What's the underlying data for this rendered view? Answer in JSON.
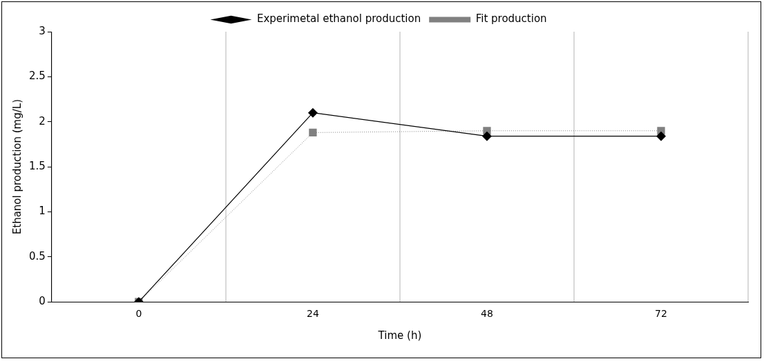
{
  "chart_data": {
    "type": "line",
    "xlabel": "Time (h)",
    "ylabel": "Ethanol production (mg/L)",
    "categories": [
      "0",
      "24",
      "48",
      "72"
    ],
    "series": [
      {
        "name": "Experimetal ethanol production",
        "color": "#000000",
        "marker": "diamond",
        "line_style": "solid",
        "values": [
          0,
          2.1,
          1.84,
          1.84
        ]
      },
      {
        "name": "Fit production",
        "color": "#808080",
        "marker": "square",
        "line_style": "dotted",
        "values": [
          0,
          1.88,
          1.9,
          1.9
        ]
      }
    ],
    "ylim": [
      0,
      3
    ],
    "yticks": [
      0,
      0.5,
      1,
      1.5,
      2,
      2.5,
      3
    ],
    "grid": "x",
    "legend": "top"
  }
}
